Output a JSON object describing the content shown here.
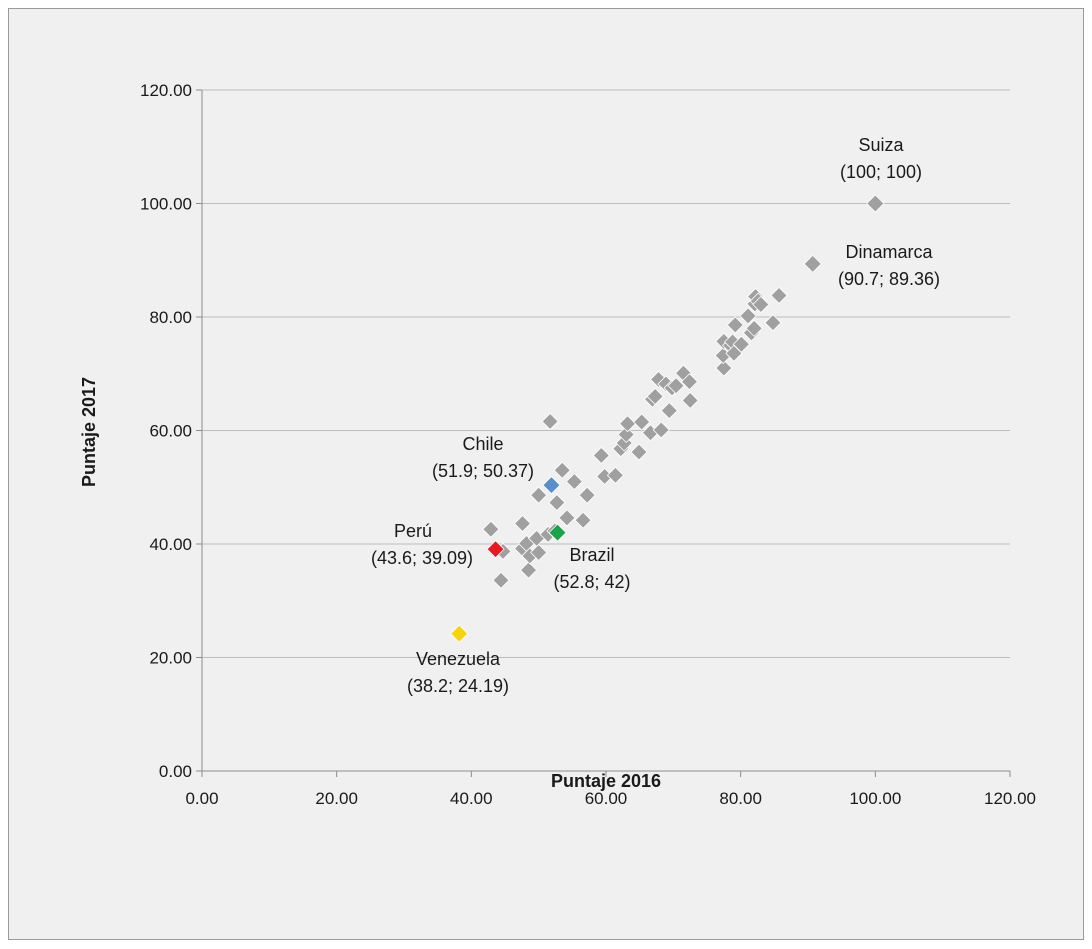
{
  "chart_data": {
    "type": "scatter",
    "xlabel": "Puntaje 2016",
    "ylabel": "Puntaje 2017",
    "xlim": [
      0,
      120
    ],
    "ylim": [
      0,
      120
    ],
    "x_ticks": [
      "0.00",
      "20.00",
      "40.00",
      "60.00",
      "80.00",
      "100.00",
      "120.00"
    ],
    "y_ticks": [
      "0.00",
      "20.00",
      "40.00",
      "60.00",
      "80.00",
      "100.00",
      "120.00"
    ],
    "grid": "horizontal",
    "colors": {
      "default_marker": "#a0a0a0",
      "chile": "#5b8ec9",
      "peru": "#e31b23",
      "brazil": "#1aa34a",
      "venezuela": "#f3d40f",
      "gridline": "#bdbdbd",
      "axis": "#8c8c8c"
    },
    "points": [
      [
        42.9,
        42.6
      ],
      [
        44.7,
        38.7
      ],
      [
        44.4,
        33.6
      ],
      [
        47.6,
        43.6
      ],
      [
        47.6,
        39.2
      ],
      [
        48.2,
        40.1
      ],
      [
        48.5,
        35.4
      ],
      [
        48.7,
        37.9
      ],
      [
        49.7,
        41.0
      ],
      [
        50.0,
        38.5
      ],
      [
        50.0,
        48.6
      ],
      [
        51.4,
        41.7
      ],
      [
        52.4,
        42.3
      ],
      [
        52.7,
        47.3
      ],
      [
        53.5,
        53.0
      ],
      [
        54.2,
        44.6
      ],
      [
        55.3,
        51.0
      ],
      [
        56.6,
        44.2
      ],
      [
        57.2,
        48.6
      ],
      [
        51.7,
        61.6
      ],
      [
        59.3,
        55.6
      ],
      [
        59.8,
        51.9
      ],
      [
        61.4,
        52.1
      ],
      [
        62.2,
        56.8
      ],
      [
        62.7,
        57.8
      ],
      [
        63.0,
        59.3
      ],
      [
        63.2,
        61.2
      ],
      [
        64.9,
        56.2
      ],
      [
        65.3,
        61.5
      ],
      [
        66.6,
        59.6
      ],
      [
        66.9,
        65.5
      ],
      [
        67.3,
        66.0
      ],
      [
        67.8,
        69.0
      ],
      [
        68.2,
        60.1
      ],
      [
        68.9,
        68.2
      ],
      [
        69.4,
        63.5
      ],
      [
        69.8,
        67.5
      ],
      [
        70.4,
        67.9
      ],
      [
        71.5,
        70.1
      ],
      [
        72.4,
        68.6
      ],
      [
        72.5,
        65.3
      ],
      [
        77.5,
        71.0
      ],
      [
        77.4,
        73.2
      ],
      [
        77.5,
        75.7
      ],
      [
        78.5,
        75.0
      ],
      [
        78.8,
        75.6
      ],
      [
        79.0,
        73.6
      ],
      [
        79.2,
        78.6
      ],
      [
        80.1,
        75.2
      ],
      [
        81.1,
        80.2
      ],
      [
        81.6,
        77.2
      ],
      [
        82.0,
        78.0
      ],
      [
        82.1,
        82.3
      ],
      [
        82.2,
        83.6
      ],
      [
        82.6,
        82.8
      ],
      [
        83.0,
        82.2
      ],
      [
        84.8,
        79.0
      ],
      [
        85.7,
        83.8
      ]
    ],
    "highlighted": [
      {
        "name": "Suiza",
        "x": 100,
        "y": 100,
        "label": "(100; 100)",
        "color": "#a0a0a0"
      },
      {
        "name": "Dinamarca",
        "x": 90.7,
        "y": 89.36,
        "label": "(90.7; 89.36)",
        "color": "#a0a0a0"
      },
      {
        "name": "Chile",
        "x": 51.9,
        "y": 50.37,
        "label": "(51.9; 50.37)",
        "color": "#5b8ec9"
      },
      {
        "name": "Perú",
        "x": 43.6,
        "y": 39.09,
        "label": "(43.6; 39.09)",
        "color": "#e31b23"
      },
      {
        "name": "Brazil",
        "x": 52.8,
        "y": 42,
        "label": "(52.8; 42)",
        "color": "#1aa34a"
      },
      {
        "name": "Venezuela",
        "x": 38.2,
        "y": 24.19,
        "label": "(38.2; 24.19)",
        "color": "#f3d40f"
      }
    ]
  }
}
